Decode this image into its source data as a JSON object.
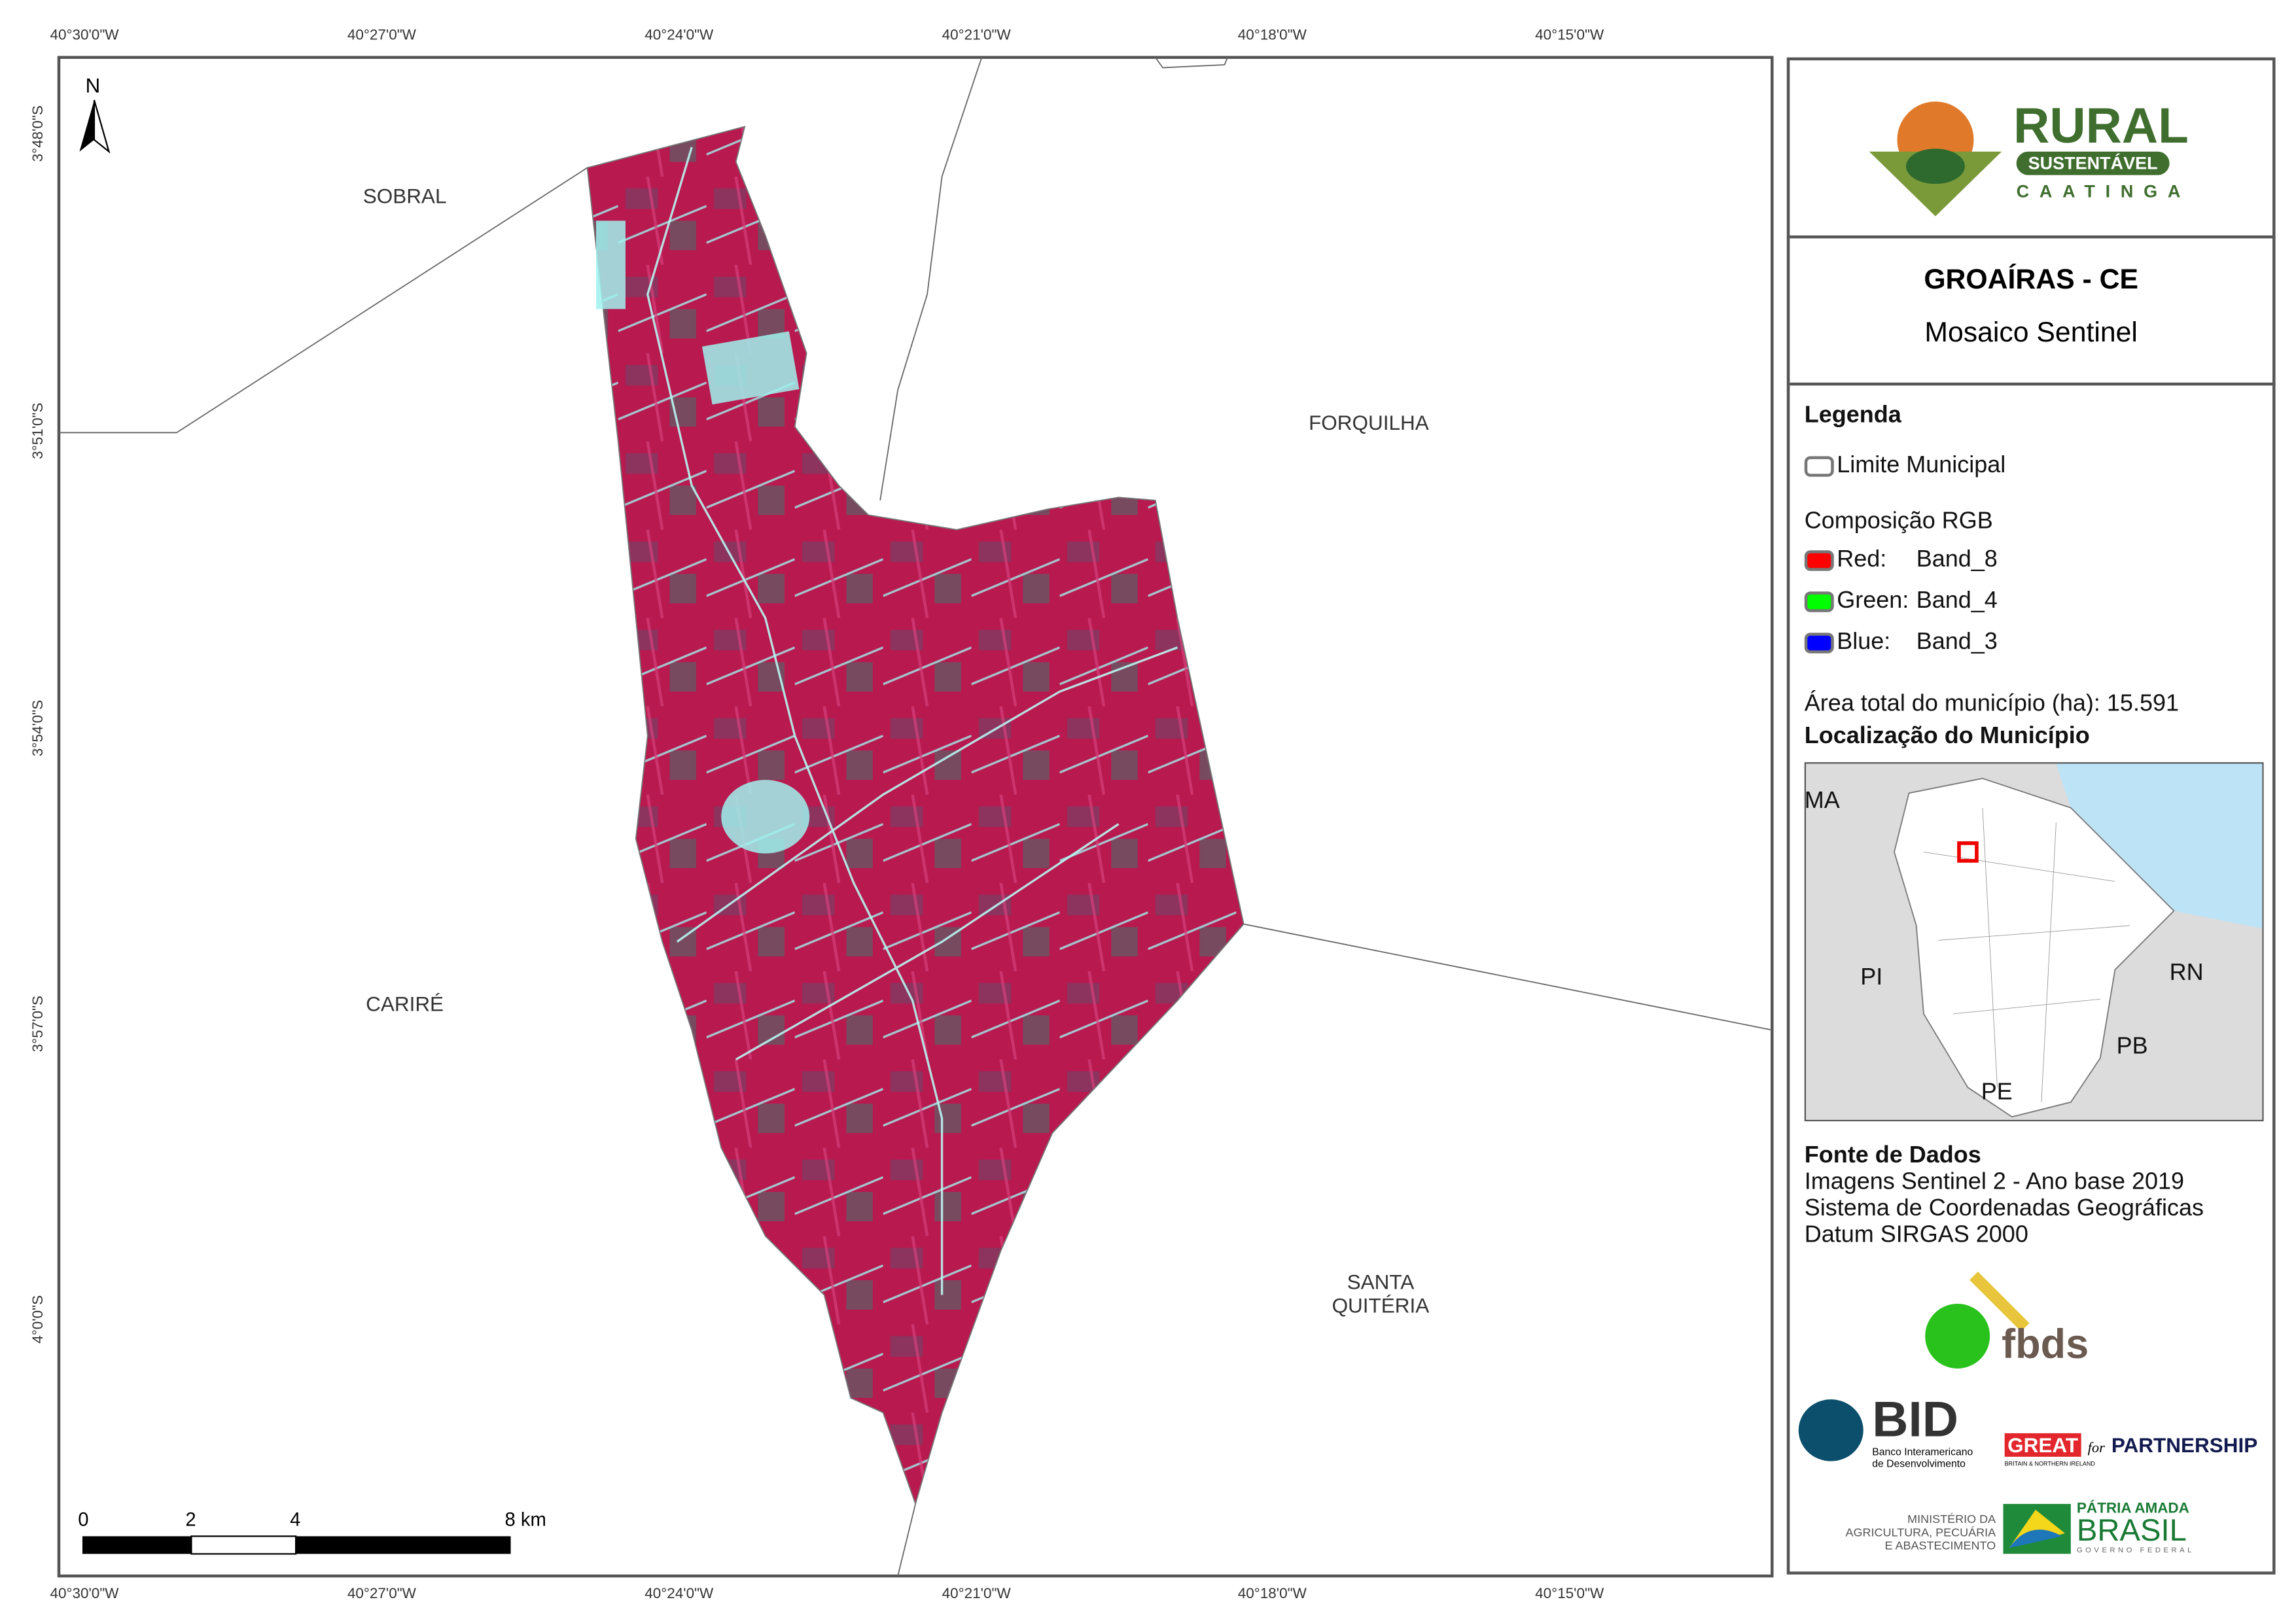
{
  "map": {
    "lon_ticks": [
      "40°30'0\"W",
      "40°27'0\"W",
      "40°24'0\"W",
      "40°21'0\"W",
      "40°18'0\"W",
      "40°15'0\"W"
    ],
    "lat_ticks": [
      "3°48'0\"S",
      "3°51'0\"S",
      "3°54'0\"S",
      "3°57'0\"S",
      "4°0'0\"S"
    ],
    "north_label": "N",
    "neighbors": [
      "SOBRAL",
      "FORQUILHA",
      "CARIRÉ",
      "SANTA QUITÉRIA"
    ],
    "scale_bar": {
      "labels": [
        "0",
        "2",
        "4",
        "8 km"
      ]
    },
    "colors": {
      "vegetation": "#c0194f",
      "urban": "#9ff2ee",
      "boundary": "#666666"
    }
  },
  "panel": {
    "logo": {
      "title": "RURAL",
      "sub": "SUSTENTÁVEL",
      "sub2": "CAATINGA"
    },
    "title": "GROAÍRAS - CE",
    "subtitle": "Mosaico Sentinel",
    "legend": {
      "heading": "Legenda",
      "boundary_label": "Limite Municipal",
      "rgb_heading": "Composição RGB",
      "bands": [
        {
          "channel": "Red:",
          "band": "Band_8",
          "color": "#ff0000"
        },
        {
          "channel": "Green:",
          "band": "Band_4",
          "color": "#00ff00"
        },
        {
          "channel": "Blue:",
          "band": "Band_3",
          "color": "#0000ff"
        }
      ],
      "area_label": "Área total do município (ha):",
      "area_value": "15.591"
    },
    "location": {
      "heading": "Localização do Município",
      "states": [
        "MA",
        "PI",
        "RN",
        "PB",
        "PE"
      ]
    },
    "sources": {
      "heading": "Fonte de Dados",
      "lines": [
        "Imagens Sentinel 2 - Ano base 2019",
        "Sistema de Coordenadas Geográficas",
        "Datum SIRGAS 2000"
      ]
    },
    "logos": {
      "fbds": "fbds",
      "bid": "BID",
      "bid_sub1": "Banco Interamericano",
      "bid_sub2": "de Desenvolvimento",
      "great": "GREAT",
      "great_for": "for",
      "partnership": "PARTNERSHIP",
      "great_sub": "BRITAIN & NORTHERN IRELAND",
      "min1": "MINISTÉRIO DA",
      "min2": "AGRICULTURA, PECUÁRIA",
      "min3": "E ABASTECIMENTO",
      "patria": "PÁTRIA AMADA",
      "brasil": "BRASIL",
      "gov": "GOVERNO FEDERAL"
    }
  }
}
